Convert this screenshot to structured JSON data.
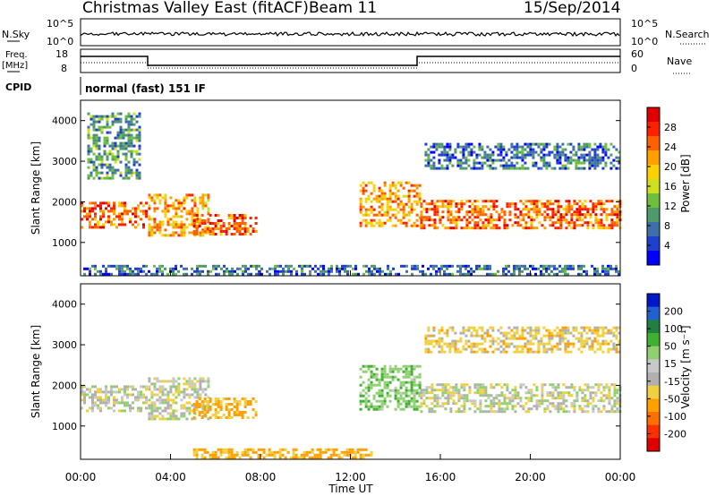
{
  "header": {
    "title": "Christmas Valley East (fitACF)",
    "beam": "Beam 11",
    "date": "15/Sep/2014"
  },
  "panels": {
    "nsky": {
      "label": "N.Sky",
      "tick_high": "10^5",
      "tick_low": "10^0"
    },
    "nsearch": {
      "label": "N.Search",
      "tick_high": "10^5",
      "tick_low": "10^0"
    },
    "freq": {
      "label_line1": "Freq.",
      "label_line2": "[MHz]",
      "tick_high": "18",
      "tick_low": "8"
    },
    "nave": {
      "label": "Nave",
      "tick_high": "60",
      "tick_low": "0"
    },
    "cpid": {
      "label": "CPID",
      "value": "normal (fast) 151 IF"
    }
  },
  "colors": {
    "power": [
      "#0000ff",
      "#1f3fcf",
      "#3f6fa8",
      "#4f9a6a",
      "#6fbf3f",
      "#cfe020",
      "#ffd000",
      "#ffa000",
      "#ff6000",
      "#ff2000",
      "#e00000"
    ],
    "velocity": [
      "#0018c8",
      "#2060d0",
      "#208040",
      "#40b030",
      "#90d070",
      "#c8c8c8",
      "#b0b0b0",
      "#f0d040",
      "#ffa000",
      "#ff7000",
      "#ff3000",
      "#e00000"
    ]
  },
  "chart_data": [
    {
      "type": "heatmap",
      "panel": "power",
      "ylabel": "Slant Range [km]",
      "yticks": [
        "1000",
        "2000",
        "3000",
        "4000"
      ],
      "ylim": [
        180,
        4500
      ],
      "colorbar_label": "Power [dB]",
      "colorbar_ticks": [
        "4",
        "8",
        "12",
        "16",
        "20",
        "24",
        "28"
      ],
      "regions": [
        {
          "t0": 0.0,
          "t1": 2.9,
          "r0": 1350,
          "r1": 2000,
          "lvl": 8
        },
        {
          "t0": 3.0,
          "t1": 5.7,
          "r0": 1200,
          "r1": 2200,
          "lvl": 7
        },
        {
          "t0": 5.0,
          "t1": 7.8,
          "r0": 1200,
          "r1": 1700,
          "lvl": 8
        },
        {
          "t0": 12.4,
          "t1": 15.1,
          "r0": 1400,
          "r1": 2500,
          "lvl": 7
        },
        {
          "t0": 15.1,
          "t1": 24.0,
          "r0": 1350,
          "r1": 2050,
          "lvl": 8
        },
        {
          "t0": 15.3,
          "t1": 24.0,
          "r0": 2800,
          "r1": 3450,
          "lvl": 2
        },
        {
          "t0": 0.3,
          "t1": 2.6,
          "r0": 2600,
          "r1": 4200,
          "lvl": 3
        },
        {
          "t0": 0.0,
          "t1": 24.0,
          "r0": 200,
          "r1": 450,
          "lvl": 2
        }
      ]
    },
    {
      "type": "heatmap",
      "panel": "velocity",
      "ylabel": "Slant Range [km]",
      "yticks": [
        "1000",
        "2000",
        "3000",
        "4000"
      ],
      "ylim": [
        180,
        4500
      ],
      "colorbar_label": "Velocity [m s⁻¹]",
      "colorbar_ticks": [
        "200",
        "100",
        "50",
        "15",
        "-15",
        "-50",
        "-100",
        "-200"
      ],
      "regions": [
        {
          "t0": 0.0,
          "t1": 2.9,
          "r0": 1350,
          "r1": 2000,
          "v": 0
        },
        {
          "t0": 3.0,
          "t1": 5.7,
          "r0": 1200,
          "r1": 2200,
          "v": 0
        },
        {
          "t0": 5.0,
          "t1": 7.8,
          "r0": 1200,
          "r1": 1700,
          "v": -60
        },
        {
          "t0": 12.4,
          "t1": 15.1,
          "r0": 1400,
          "r1": 2500,
          "v": 40
        },
        {
          "t0": 15.1,
          "t1": 24.0,
          "r0": 1350,
          "r1": 2050,
          "v": 0
        },
        {
          "t0": 15.3,
          "t1": 24.0,
          "r0": 2800,
          "r1": 3450,
          "v": -30
        },
        {
          "t0": 5.0,
          "t1": 13.0,
          "r0": 200,
          "r1": 450,
          "v": -60
        }
      ]
    }
  ],
  "xaxis": {
    "ticks": [
      "00:00",
      "04:00",
      "08:00",
      "12:00",
      "16:00",
      "20:00",
      "00:00"
    ],
    "label": "Time UT"
  }
}
